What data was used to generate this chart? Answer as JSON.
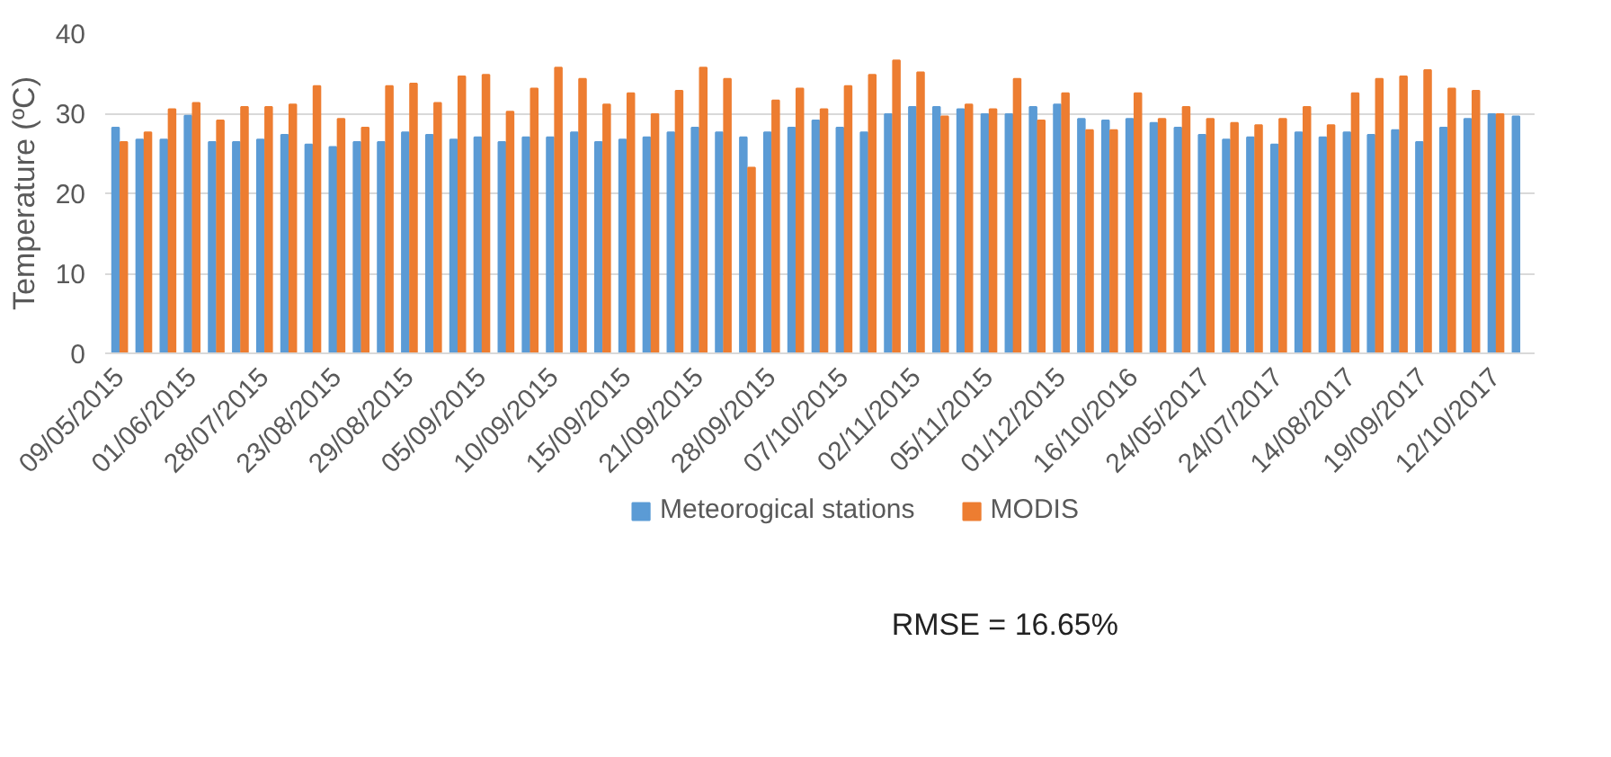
{
  "chart_data": {
    "type": "bar",
    "ylabel": "Temperature (ºC)",
    "categories": [
      "09/05/2015",
      null,
      null,
      "01/06/2015",
      null,
      null,
      "28/07/2015",
      null,
      null,
      "23/08/2015",
      null,
      null,
      "29/08/2015",
      null,
      null,
      "05/09/2015",
      null,
      null,
      "10/09/2015",
      null,
      null,
      "15/09/2015",
      null,
      null,
      "21/09/2015",
      null,
      null,
      "28/09/2015",
      null,
      null,
      "07/10/2015",
      null,
      null,
      "02/11/2015",
      null,
      null,
      "05/11/2015",
      null,
      null,
      "01/12/2015",
      null,
      null,
      "16/10/2016",
      null,
      null,
      "24/05/2017",
      null,
      null,
      "24/07/2017",
      null,
      null,
      "14/08/2017",
      null,
      null,
      "19/09/2017",
      null,
      null,
      "12/10/2017",
      null
    ],
    "series": [
      {
        "name": "Meteorogical stations",
        "color": "#5b9bd5",
        "values": [
          28.2,
          26.7,
          26.7,
          29.7,
          26.4,
          26.4,
          26.7,
          27.3,
          26.1,
          25.8,
          26.4,
          26.4,
          27.6,
          27.3,
          26.7,
          27.0,
          26.4,
          27.0,
          27.0,
          27.6,
          26.4,
          26.7,
          27.0,
          27.6,
          28.2,
          27.6,
          27.0,
          27.6,
          28.2,
          29.1,
          28.2,
          27.6,
          29.9,
          30.8,
          30.8,
          30.5,
          29.9,
          29.9,
          30.8,
          31.1,
          29.3,
          29.1,
          29.3,
          28.8,
          28.2,
          27.3,
          26.7,
          27.0,
          26.1,
          27.6,
          27.0,
          27.6,
          27.3,
          27.9,
          26.4,
          28.2,
          29.3,
          29.9,
          29.6
        ]
      },
      {
        "name": "MODIS",
        "color": "#ed7d31",
        "values": [
          26.4,
          27.6,
          30.5,
          31.3,
          29.1,
          30.8,
          30.8,
          31.1,
          33.4,
          29.3,
          28.2,
          33.4,
          33.7,
          31.3,
          34.6,
          34.8,
          30.2,
          33.1,
          35.7,
          34.3,
          31.1,
          32.5,
          29.9,
          32.8,
          35.7,
          34.3,
          23.2,
          31.6,
          33.1,
          30.5,
          33.4,
          34.8,
          36.6,
          35.1,
          29.6,
          31.1,
          30.5,
          34.3,
          29.1,
          32.5,
          27.9,
          27.9,
          32.5,
          29.3,
          30.8,
          29.3,
          28.8,
          28.5,
          29.3,
          30.8,
          28.5,
          32.5,
          34.3,
          34.6,
          35.4,
          33.1,
          32.8,
          29.9,
          null
        ]
      }
    ],
    "ylim": [
      0,
      40
    ],
    "yticks": [
      0,
      10,
      20,
      30,
      40
    ],
    "grid": "y",
    "legend": "bottom",
    "annotations": [
      "RMSE = 16.65%"
    ]
  }
}
